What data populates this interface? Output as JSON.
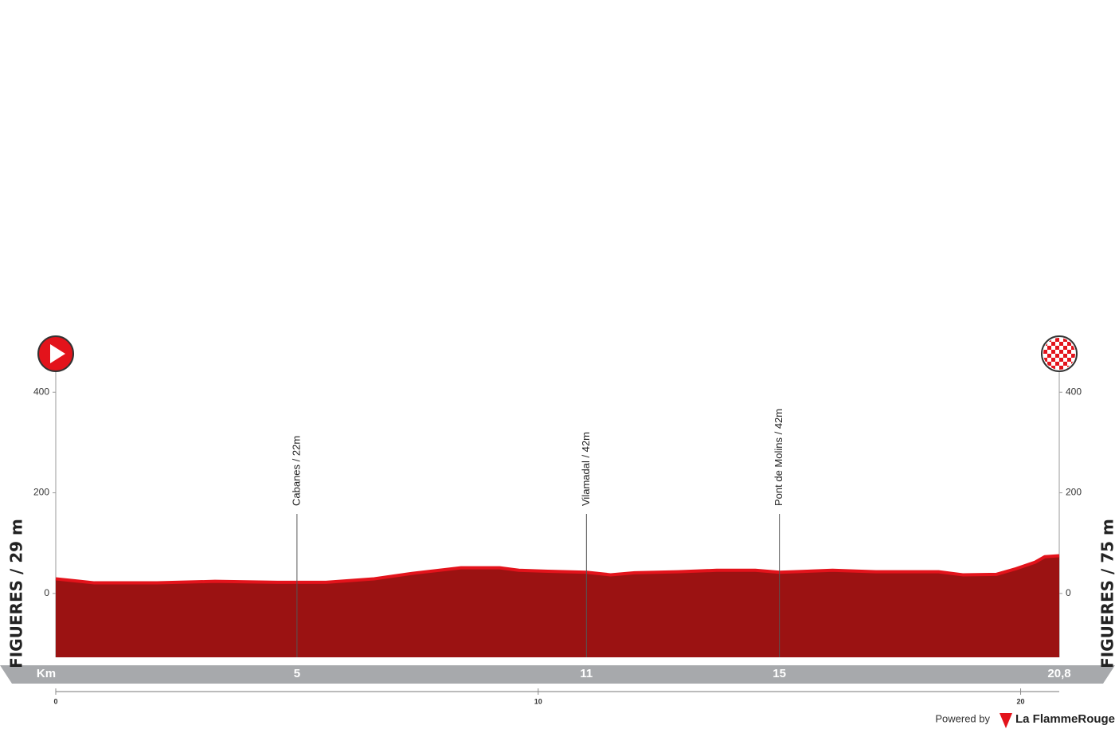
{
  "chart_data": {
    "type": "area",
    "x": [
      0,
      0.5,
      0.8,
      2.1,
      3.3,
      4.6,
      5.6,
      6.6,
      7.4,
      8.4,
      9.2,
      9.6,
      10.2,
      11,
      11.5,
      12,
      12.9,
      13.7,
      14.5,
      15,
      15.3,
      16.1,
      17,
      18.3,
      18.8,
      19.5,
      19.9,
      20.3,
      20.5,
      20.8
    ],
    "values": [
      29,
      24,
      21,
      21,
      24,
      22,
      22,
      29,
      40,
      51,
      51,
      46,
      44,
      42,
      37,
      41,
      43,
      46,
      46,
      42,
      43,
      46,
      43,
      43,
      37,
      38,
      49,
      62,
      73,
      75
    ],
    "color": "#9b1212",
    "line_color": "#e3131b",
    "xlim": [
      0,
      20.8
    ],
    "ylim": [
      -127,
      440
    ],
    "yticks": [
      0,
      200,
      400
    ],
    "xticks": [
      0,
      10,
      20
    ],
    "x_label": "Km",
    "km_markers": [
      5,
      11,
      15,
      {
        "value": 20.8,
        "label": "20,8"
      }
    ],
    "waypoints": [
      {
        "label": "Cabanes / 22m",
        "km": 5
      },
      {
        "label": "Vilamadal  / 42m",
        "km": 11
      },
      {
        "label": "Pont de Molins / 42m",
        "km": 15
      }
    ],
    "start_label": "FIGUERES / 29 m",
    "finish_label": "FIGUERES / 75 m"
  },
  "footer": {
    "powered_by": "Powered by",
    "brand": "La FlammeRouge"
  }
}
